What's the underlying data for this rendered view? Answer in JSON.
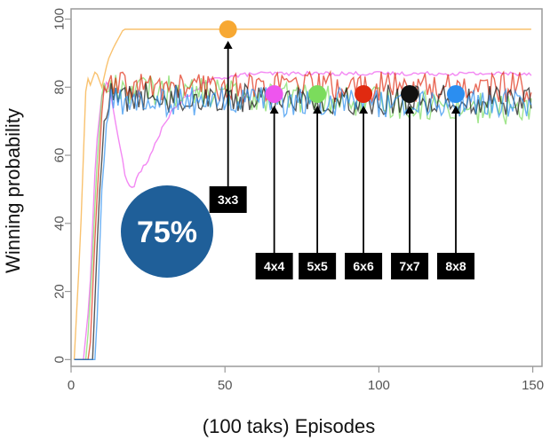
{
  "chart_data": {
    "type": "line",
    "title": "",
    "xlabel": "(100 taks) Episodes",
    "ylabel": "Winning probability",
    "xlim": [
      0,
      153
    ],
    "ylim": [
      -2,
      103
    ],
    "grid": false,
    "x_ticks": [
      0,
      50,
      100,
      150
    ],
    "y_ticks": [
      0,
      20,
      40,
      60,
      80,
      100
    ],
    "series": [
      {
        "name": "3x3",
        "color": "#f7a832",
        "points": [
          [
            1,
            0
          ],
          [
            3,
            35
          ],
          [
            5,
            85
          ],
          [
            6,
            80
          ],
          [
            8,
            85
          ],
          [
            10,
            80
          ],
          [
            12,
            88
          ],
          [
            14,
            92
          ],
          [
            17,
            97
          ],
          [
            20,
            97
          ],
          [
            30,
            97
          ],
          [
            60,
            97
          ],
          [
            100,
            97
          ],
          [
            150,
            97
          ]
        ],
        "marker": [
          51,
          97
        ]
      },
      {
        "name": "4x4",
        "color": "#ee55ee",
        "points": [
          [
            1,
            0
          ],
          [
            4,
            0
          ],
          [
            6,
            18
          ],
          [
            8,
            60
          ],
          [
            10,
            78
          ],
          [
            12,
            82
          ],
          [
            14,
            72
          ],
          [
            16,
            62
          ],
          [
            18,
            52
          ],
          [
            20,
            50
          ],
          [
            22,
            55
          ],
          [
            25,
            58
          ],
          [
            28,
            65
          ],
          [
            32,
            72
          ],
          [
            36,
            76
          ],
          [
            40,
            79
          ],
          [
            45,
            82
          ],
          [
            50,
            83
          ],
          [
            60,
            84
          ],
          [
            80,
            84
          ],
          [
            100,
            84
          ],
          [
            120,
            84
          ],
          [
            150,
            84
          ]
        ],
        "marker": [
          66,
          78
        ]
      },
      {
        "name": "5x5",
        "color": "#7bdc5c",
        "points": [
          [
            1,
            0
          ],
          [
            5,
            0
          ],
          [
            7,
            30
          ],
          [
            9,
            70
          ],
          [
            11,
            80
          ],
          [
            150,
            73
          ]
        ],
        "marker": [
          80,
          78
        ]
      },
      {
        "name": "6x6",
        "color": "#e02a10",
        "points": [
          [
            1,
            0
          ],
          [
            6,
            0
          ],
          [
            8,
            40
          ],
          [
            10,
            74
          ],
          [
            12,
            80
          ],
          [
            150,
            80
          ]
        ],
        "marker": [
          95,
          78
        ]
      },
      {
        "name": "7x7",
        "color": "#111111",
        "points": [
          [
            1,
            0
          ],
          [
            7,
            0
          ],
          [
            9,
            45
          ],
          [
            11,
            74
          ],
          [
            13,
            77
          ],
          [
            150,
            76
          ]
        ],
        "marker": [
          110,
          78
        ]
      },
      {
        "name": "8x8",
        "color": "#2b8ef0",
        "points": [
          [
            1,
            0
          ],
          [
            8,
            0
          ],
          [
            10,
            50
          ],
          [
            12,
            74
          ],
          [
            14,
            76
          ],
          [
            150,
            75
          ]
        ],
        "marker": [
          125,
          78
        ]
      }
    ],
    "annotation": {
      "label": "75%",
      "color": "#1f5f99"
    }
  }
}
